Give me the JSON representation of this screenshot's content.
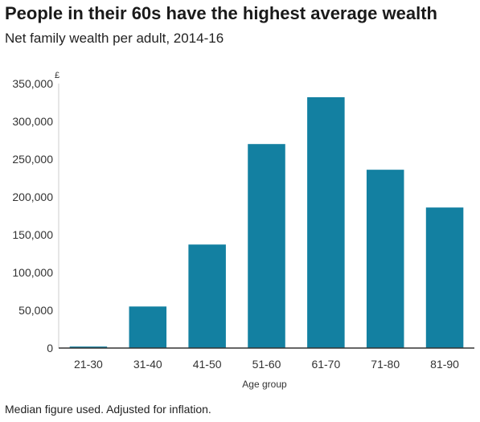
{
  "title": "People in their 60s have the highest average wealth",
  "subtitle": "Net family wealth per adult, 2014-16",
  "footnote": "Median figure used. Adjusted for inflation.",
  "colors": {
    "bar": "#1380a1",
    "axis": "#333333",
    "grid": "#dddddd"
  },
  "chart_data": {
    "type": "bar",
    "categories": [
      "21-30",
      "31-40",
      "41-50",
      "51-60",
      "61-70",
      "71-80",
      "81-90"
    ],
    "values": [
      2000,
      55000,
      137000,
      270000,
      332000,
      236000,
      186000
    ],
    "unit": "£",
    "xlabel": "Age group",
    "ylabel": "",
    "ylim": [
      0,
      350000
    ],
    "yticks": [
      "0",
      "50,000",
      "100,000",
      "150,000",
      "200,000",
      "250,000",
      "300,000",
      "350,000"
    ],
    "grid": false,
    "legend": "none"
  }
}
